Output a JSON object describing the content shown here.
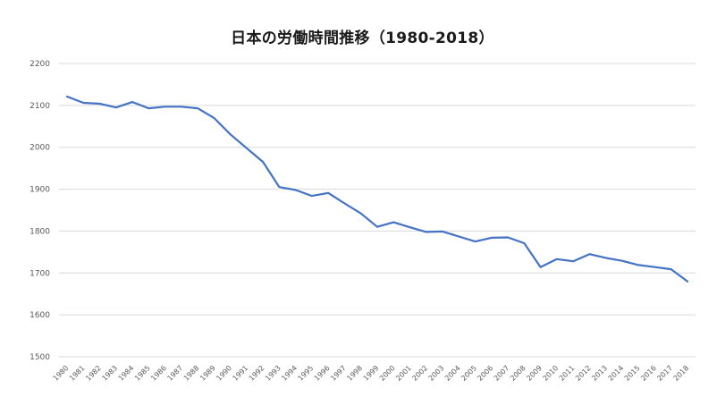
{
  "chart_data": {
    "type": "line",
    "title": "日本の労働時間推移（1980-2018）",
    "xlabel": "",
    "ylabel": "",
    "ylim": [
      1500,
      2200
    ],
    "yticks": [
      1500,
      1600,
      1700,
      1800,
      1900,
      2000,
      2100,
      2200
    ],
    "grid": true,
    "legend": "none",
    "line_color": "#4472c4",
    "grid_color": "#d9d9d9",
    "x": [
      "1980",
      "1981",
      "1982",
      "1983",
      "1984",
      "1985",
      "1986",
      "1987",
      "1988",
      "1989",
      "1990",
      "1991",
      "1992",
      "1993",
      "1994",
      "1995",
      "1996",
      "1997",
      "1998",
      "1999",
      "2000",
      "2001",
      "2002",
      "2003",
      "2004",
      "2005",
      "2006",
      "2007",
      "2008",
      "2009",
      "2010",
      "2011",
      "2012",
      "2013",
      "2014",
      "2015",
      "2016",
      "2017",
      "2018"
    ],
    "series": [
      {
        "values": [
          2121,
          2106,
          2104,
          2095,
          2108,
          2093,
          2097,
          2097,
          2093,
          2070,
          2031,
          1998,
          1965,
          1905,
          1898,
          1884,
          1891,
          1866,
          1842,
          1810,
          1821,
          1809,
          1798,
          1799,
          1787,
          1775,
          1784,
          1785,
          1771,
          1714,
          1733,
          1728,
          1745,
          1736,
          1729,
          1719,
          1714,
          1709,
          1680
        ]
      }
    ]
  }
}
